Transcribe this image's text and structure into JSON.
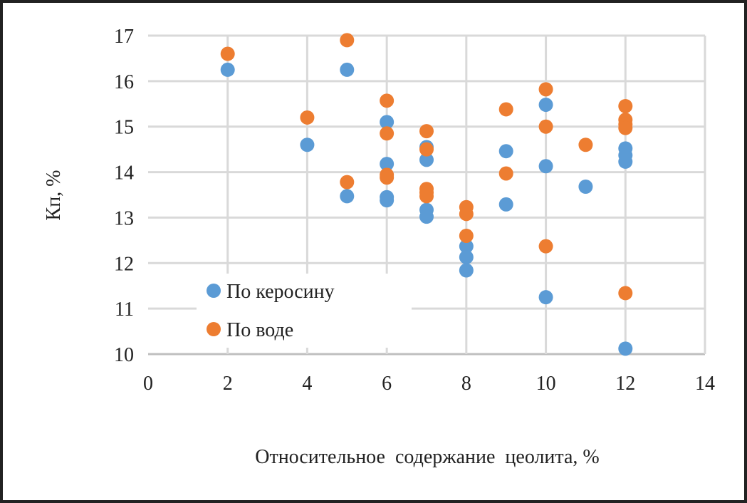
{
  "chart_data": {
    "type": "scatter",
    "title": "",
    "xlabel": "Относительное  содержание  цеолита, %",
    "ylabel": "Кп, %",
    "xlim": [
      0,
      14
    ],
    "ylim": [
      10,
      17
    ],
    "xticks": [
      0,
      2,
      4,
      6,
      8,
      10,
      12,
      14
    ],
    "yticks": [
      10,
      11,
      12,
      13,
      14,
      15,
      16,
      17
    ],
    "grid": true,
    "legend_position": "bottom-left",
    "series": [
      {
        "name": "По керосину",
        "color": "#5B9BD5",
        "points": [
          [
            2,
            16.25
          ],
          [
            4,
            14.6
          ],
          [
            5,
            16.25
          ],
          [
            5,
            13.47
          ],
          [
            6,
            15.1
          ],
          [
            6,
            14.18
          ],
          [
            6,
            13.45
          ],
          [
            6,
            13.38
          ],
          [
            7,
            14.55
          ],
          [
            7,
            14.27
          ],
          [
            7,
            13.17
          ],
          [
            7,
            13.02
          ],
          [
            8,
            12.37
          ],
          [
            8,
            12.13
          ],
          [
            8,
            11.84
          ],
          [
            9,
            14.46
          ],
          [
            9,
            13.29
          ],
          [
            10,
            15.48
          ],
          [
            10,
            14.13
          ],
          [
            10,
            11.25
          ],
          [
            11,
            13.68
          ],
          [
            12,
            14.52
          ],
          [
            12,
            14.37
          ],
          [
            12,
            14.23
          ],
          [
            12,
            10.12
          ]
        ]
      },
      {
        "name": "По воде",
        "color": "#ED7D31",
        "points": [
          [
            2,
            16.6
          ],
          [
            4,
            15.2
          ],
          [
            5,
            16.9
          ],
          [
            5,
            13.78
          ],
          [
            6,
            15.57
          ],
          [
            6,
            14.85
          ],
          [
            6,
            13.94
          ],
          [
            6,
            13.88
          ],
          [
            7,
            14.9
          ],
          [
            7,
            14.5
          ],
          [
            7,
            13.63
          ],
          [
            7,
            13.55
          ],
          [
            7,
            13.47
          ],
          [
            8,
            13.23
          ],
          [
            8,
            13.08
          ],
          [
            8,
            12.6
          ],
          [
            9,
            15.38
          ],
          [
            9,
            13.97
          ],
          [
            10,
            15.82
          ],
          [
            10,
            15.0
          ],
          [
            10,
            12.37
          ],
          [
            11,
            14.6
          ],
          [
            12,
            15.45
          ],
          [
            12,
            15.15
          ],
          [
            12,
            15.05
          ],
          [
            12,
            14.97
          ],
          [
            12,
            11.34
          ]
        ]
      }
    ]
  }
}
